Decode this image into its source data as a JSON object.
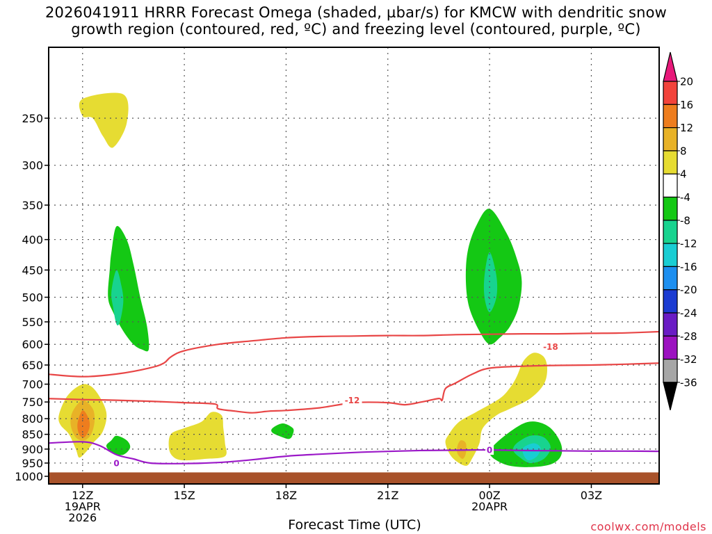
{
  "title": {
    "line1": "2026041911 HRRR Forecast Omega (shaded, µbar/s) for KMCW with dendritic snow",
    "line2": "growth region (contoured, red, ºC) and freezing level (contoured, purple, ºC)"
  },
  "footer": {
    "xlabel": "Forecast Time (UTC)",
    "credit": "coolwx.com/models"
  },
  "chart_data": {
    "type": "contour",
    "x_unit": "hours since 2026-04-19 11Z",
    "x_range": [
      0,
      18
    ],
    "y_unit": "pressure (hPa)",
    "y_range": [
      1030,
      190
    ],
    "y_ticks": [
      250,
      300,
      350,
      400,
      450,
      500,
      550,
      600,
      650,
      700,
      750,
      800,
      850,
      900,
      950,
      1000
    ],
    "x_ticks": [
      {
        "x": 1,
        "lines": [
          "12Z",
          "19APR",
          "2026"
        ]
      },
      {
        "x": 4,
        "lines": [
          "15Z"
        ]
      },
      {
        "x": 7,
        "lines": [
          "18Z"
        ]
      },
      {
        "x": 10,
        "lines": [
          "21Z"
        ]
      },
      {
        "x": 13,
        "lines": [
          "00Z",
          "20APR"
        ]
      },
      {
        "x": 16,
        "lines": [
          "03Z"
        ]
      }
    ],
    "ground_pressure": 985,
    "colorbar": {
      "labels": [
        "20",
        "16",
        "12",
        "8",
        "4",
        "-4",
        "-8",
        "-12",
        "-16",
        "-20",
        "-24",
        "-28",
        "-32",
        "-36"
      ],
      "colors": [
        "#e8197a",
        "#f2433b",
        "#ee7d1e",
        "#e8b227",
        "#e6dc32",
        "#ffffff",
        "#14c814",
        "#18d38f",
        "#19cdd3",
        "#1d8ff0",
        "#1c3cd2",
        "#6a1cc4",
        "#9c12c0",
        "#a6a6a6",
        "#000000"
      ]
    },
    "omega_regions": [
      {
        "name": "upper-yellow-patch",
        "color": "#e6dc32",
        "points": [
          [
            1.0,
            232
          ],
          [
            2.2,
            228
          ],
          [
            2.3,
            255
          ],
          [
            1.9,
            280
          ],
          [
            1.6,
            268
          ],
          [
            1.3,
            250
          ],
          [
            1.0,
            248
          ]
        ]
      },
      {
        "name": "left-green-column",
        "color": "#14c814",
        "points": [
          [
            2.0,
            380
          ],
          [
            2.3,
            400
          ],
          [
            2.5,
            440
          ],
          [
            2.7,
            500
          ],
          [
            2.9,
            560
          ],
          [
            2.95,
            612
          ],
          [
            2.75,
            612
          ],
          [
            2.5,
            600
          ],
          [
            2.2,
            570
          ],
          [
            1.9,
            530
          ],
          [
            1.75,
            500
          ],
          [
            1.8,
            450
          ],
          [
            1.85,
            420
          ]
        ]
      },
      {
        "name": "left-teal-core",
        "color": "#18d38f",
        "points": [
          [
            2.0,
            450
          ],
          [
            2.15,
            480
          ],
          [
            2.2,
            510
          ],
          [
            2.1,
            550
          ],
          [
            2.0,
            555
          ],
          [
            1.9,
            520
          ],
          [
            1.85,
            490
          ]
        ]
      },
      {
        "name": "right-green-column",
        "color": "#14c814",
        "points": [
          [
            13.0,
            355
          ],
          [
            13.5,
            390
          ],
          [
            13.8,
            430
          ],
          [
            13.95,
            470
          ],
          [
            13.85,
            520
          ],
          [
            13.6,
            560
          ],
          [
            13.3,
            585
          ],
          [
            13.0,
            600
          ],
          [
            12.7,
            570
          ],
          [
            12.4,
            520
          ],
          [
            12.3,
            470
          ],
          [
            12.35,
            420
          ],
          [
            12.6,
            380
          ]
        ]
      },
      {
        "name": "right-teal-core",
        "color": "#18d38f",
        "points": [
          [
            13.0,
            420
          ],
          [
            13.2,
            460
          ],
          [
            13.2,
            500
          ],
          [
            13.0,
            530
          ],
          [
            12.85,
            500
          ],
          [
            12.85,
            460
          ]
        ]
      },
      {
        "name": "lower-left-yellow",
        "color": "#e6dc32",
        "points": [
          [
            0.3,
            790
          ],
          [
            0.5,
            740
          ],
          [
            0.8,
            710
          ],
          [
            1.1,
            700
          ],
          [
            1.4,
            720
          ],
          [
            1.7,
            780
          ],
          [
            1.6,
            840
          ],
          [
            1.3,
            880
          ],
          [
            1.1,
            910
          ],
          [
            0.9,
            930
          ],
          [
            0.8,
            900
          ],
          [
            0.6,
            850
          ],
          [
            0.35,
            820
          ]
        ]
      },
      {
        "name": "lower-left-tan",
        "color": "#e8b227",
        "points": [
          [
            1.0,
            745
          ],
          [
            1.3,
            770
          ],
          [
            1.35,
            810
          ],
          [
            1.25,
            850
          ],
          [
            1.05,
            870
          ],
          [
            0.8,
            860
          ],
          [
            0.65,
            820
          ],
          [
            0.7,
            780
          ]
        ]
      },
      {
        "name": "lower-left-orange",
        "color": "#ee7d1e",
        "points": [
          [
            1.0,
            775
          ],
          [
            1.18,
            800
          ],
          [
            1.2,
            830
          ],
          [
            1.05,
            860
          ],
          [
            0.9,
            850
          ],
          [
            0.85,
            815
          ]
        ]
      },
      {
        "name": "small-green-left",
        "color": "#14c814",
        "points": [
          [
            2.0,
            855
          ],
          [
            2.3,
            870
          ],
          [
            2.4,
            895
          ],
          [
            2.2,
            920
          ],
          [
            1.9,
            915
          ],
          [
            1.7,
            890
          ],
          [
            1.85,
            870
          ]
        ]
      },
      {
        "name": "yellow-15z-blob",
        "color": "#e6dc32",
        "points": [
          [
            3.6,
            850
          ],
          [
            4.0,
            830
          ],
          [
            4.5,
            810
          ],
          [
            4.8,
            780
          ],
          [
            5.1,
            790
          ],
          [
            5.15,
            830
          ],
          [
            5.2,
            880
          ],
          [
            5.2,
            925
          ],
          [
            4.6,
            935
          ],
          [
            4.0,
            940
          ],
          [
            3.7,
            930
          ],
          [
            3.55,
            900
          ]
        ]
      },
      {
        "name": "small-green-18z",
        "color": "#14c814",
        "points": [
          [
            6.6,
            830
          ],
          [
            6.9,
            815
          ],
          [
            7.2,
            830
          ],
          [
            7.2,
            850
          ],
          [
            7.1,
            865
          ],
          [
            6.9,
            860
          ],
          [
            6.6,
            845
          ]
        ]
      },
      {
        "name": "yellow-pre00z",
        "color": "#e6dc32",
        "points": [
          [
            11.7,
            880
          ],
          [
            11.8,
            850
          ],
          [
            12.1,
            810
          ],
          [
            12.6,
            780
          ],
          [
            13.3,
            740
          ],
          [
            13.6,
            710
          ],
          [
            13.8,
            680
          ],
          [
            14.0,
            640
          ],
          [
            14.3,
            620
          ],
          [
            14.6,
            630
          ],
          [
            14.7,
            660
          ],
          [
            14.6,
            700
          ],
          [
            14.2,
            740
          ],
          [
            13.6,
            770
          ],
          [
            13.2,
            790
          ],
          [
            12.8,
            830
          ],
          [
            12.7,
            880
          ],
          [
            12.5,
            930
          ],
          [
            12.3,
            960
          ],
          [
            11.9,
            930
          ]
        ]
      },
      {
        "name": "tan-pre00z",
        "color": "#e8b227",
        "points": [
          [
            12.15,
            870
          ],
          [
            12.3,
            880
          ],
          [
            12.3,
            915
          ],
          [
            12.2,
            935
          ],
          [
            12.05,
            915
          ],
          [
            12.05,
            890
          ]
        ]
      },
      {
        "name": "green-post00z",
        "color": "#14c814",
        "points": [
          [
            13.1,
            890
          ],
          [
            13.5,
            850
          ],
          [
            14.0,
            815
          ],
          [
            14.4,
            810
          ],
          [
            14.8,
            830
          ],
          [
            15.1,
            880
          ],
          [
            15.1,
            925
          ],
          [
            14.8,
            955
          ],
          [
            14.2,
            965
          ],
          [
            13.6,
            960
          ],
          [
            13.2,
            940
          ],
          [
            13.0,
            915
          ]
        ]
      },
      {
        "name": "teal-post00z",
        "color": "#18d38f",
        "points": [
          [
            13.8,
            880
          ],
          [
            14.2,
            855
          ],
          [
            14.6,
            860
          ],
          [
            14.8,
            895
          ],
          [
            14.6,
            935
          ],
          [
            14.2,
            950
          ],
          [
            13.9,
            930
          ],
          [
            13.7,
            905
          ]
        ]
      },
      {
        "name": "cyan-post00z",
        "color": "#19cdd3",
        "points": [
          [
            14.0,
            895
          ],
          [
            14.3,
            880
          ],
          [
            14.5,
            895
          ],
          [
            14.4,
            925
          ],
          [
            14.15,
            940
          ],
          [
            14.0,
            920
          ]
        ]
      }
    ],
    "contours": [
      {
        "name": "dgz-18",
        "label": "-18",
        "label_at": [
          14.8,
          605
        ],
        "color": "#e84646",
        "points": [
          [
            -0.1,
            673
          ],
          [
            1.0,
            680
          ],
          [
            2.0,
            673
          ],
          [
            3.0,
            657
          ],
          [
            3.4,
            645
          ],
          [
            3.6,
            630
          ],
          [
            4.0,
            615
          ],
          [
            5.0,
            600
          ],
          [
            6.0,
            592
          ],
          [
            7.0,
            585
          ],
          [
            8.0,
            582
          ],
          [
            9.0,
            581
          ],
          [
            10.0,
            580
          ],
          [
            11.0,
            580
          ],
          [
            12.0,
            578
          ],
          [
            13.0,
            577
          ],
          [
            14.0,
            576
          ],
          [
            15.0,
            576
          ],
          [
            16.0,
            575
          ],
          [
            17.0,
            574
          ],
          [
            18.1,
            571
          ]
        ]
      },
      {
        "name": "dgz-12",
        "label": "-12",
        "label_at": [
          8.95,
          745
        ],
        "color": "#e84646",
        "points": [
          [
            -0.1,
            740
          ],
          [
            1.0,
            743
          ],
          [
            2.0,
            745
          ],
          [
            3.0,
            748
          ],
          [
            4.0,
            752
          ],
          [
            4.9,
            756
          ],
          [
            5.0,
            770
          ],
          [
            5.5,
            777
          ],
          [
            6.0,
            782
          ],
          [
            6.5,
            777
          ],
          [
            7.0,
            775
          ],
          [
            8.0,
            767
          ],
          [
            9.0,
            752
          ],
          [
            10.0,
            752
          ],
          [
            10.5,
            758
          ],
          [
            11.0,
            750
          ],
          [
            11.5,
            740
          ],
          [
            11.6,
            745
          ],
          [
            11.7,
            712
          ],
          [
            12.0,
            697
          ],
          [
            12.5,
            673
          ],
          [
            13.0,
            658
          ],
          [
            14.0,
            653
          ],
          [
            15.0,
            651
          ],
          [
            16.0,
            650
          ],
          [
            17.0,
            648
          ],
          [
            18.1,
            645
          ]
        ]
      },
      {
        "name": "freezing-level",
        "label": "0",
        "label_at": [
          2.0,
          950
        ],
        "color": "#9b19c8",
        "points": [
          [
            -0.1,
            880
          ],
          [
            1.0,
            875
          ],
          [
            1.5,
            888
          ],
          [
            2.0,
            920
          ],
          [
            2.5,
            935
          ],
          [
            3.0,
            950
          ],
          [
            4.0,
            952
          ],
          [
            5.0,
            948
          ],
          [
            6.0,
            938
          ],
          [
            7.0,
            925
          ],
          [
            8.0,
            918
          ],
          [
            9.0,
            912
          ],
          [
            10.0,
            908
          ],
          [
            11.0,
            905
          ],
          [
            12.0,
            904
          ],
          [
            12.5,
            903
          ],
          [
            13.0,
            903
          ],
          [
            14.0,
            905
          ],
          [
            15.0,
            906
          ],
          [
            16.0,
            907
          ],
          [
            17.0,
            907
          ],
          [
            18.1,
            908
          ]
        ]
      }
    ],
    "contour_label_2": {
      "label": "0",
      "label_at": [
        13.0,
        903
      ],
      "color": "#9b19c8"
    }
  }
}
